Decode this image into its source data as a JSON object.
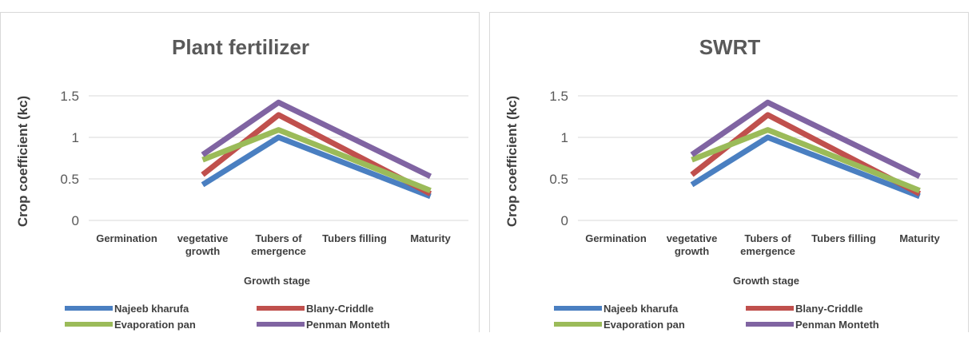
{
  "chart_data": [
    {
      "type": "line",
      "title": "Plant fertilizer",
      "xlabel": "Growth stage",
      "ylabel": "Crop coefficient (kc)",
      "categories": [
        [
          "Germination"
        ],
        [
          "vegetative",
          "growth"
        ],
        [
          "Tubers of",
          "emergence"
        ],
        [
          "Tubers filling"
        ],
        [
          "Maturity"
        ]
      ],
      "yticks": [
        "0",
        "0.5",
        "1",
        "1.5"
      ],
      "ylim": [
        0,
        1.5
      ],
      "grid": true,
      "legend_position": "bottom",
      "series": [
        {
          "name": "Najeeb kharufa",
          "color": "#4a7fc1",
          "values": [
            null,
            0.43,
            1.0,
            null,
            0.29
          ]
        },
        {
          "name": "Blany-Criddle",
          "color": "#c0504d",
          "values": [
            null,
            0.55,
            1.27,
            null,
            0.32
          ]
        },
        {
          "name": "Evaporation pan",
          "color": "#9bbb59",
          "values": [
            null,
            0.73,
            1.09,
            null,
            0.36
          ]
        },
        {
          "name": "Penman Monteth",
          "color": "#8064a2",
          "values": [
            null,
            0.79,
            1.42,
            null,
            0.53
          ]
        }
      ]
    },
    {
      "type": "line",
      "title": "SWRT",
      "xlabel": "Growth stage",
      "ylabel": "Crop coefficient (kc)",
      "categories": [
        [
          "Germination"
        ],
        [
          "vegetative",
          "growth"
        ],
        [
          "Tubers of",
          "emergence"
        ],
        [
          "Tubers filling"
        ],
        [
          "Maturity"
        ]
      ],
      "yticks": [
        "0",
        "0.5",
        "1",
        "1.5"
      ],
      "ylim": [
        0,
        1.5
      ],
      "grid": true,
      "legend_position": "bottom",
      "series": [
        {
          "name": "Najeeb kharufa",
          "color": "#4a7fc1",
          "values": [
            null,
            0.43,
            1.0,
            null,
            0.29
          ]
        },
        {
          "name": "Blany-Criddle",
          "color": "#c0504d",
          "values": [
            null,
            0.55,
            1.27,
            null,
            0.32
          ]
        },
        {
          "name": "Evaporation pan",
          "color": "#9bbb59",
          "values": [
            null,
            0.73,
            1.09,
            null,
            0.36
          ]
        },
        {
          "name": "Penman Monteth",
          "color": "#8064a2",
          "values": [
            null,
            0.79,
            1.42,
            null,
            0.53
          ]
        }
      ]
    }
  ]
}
